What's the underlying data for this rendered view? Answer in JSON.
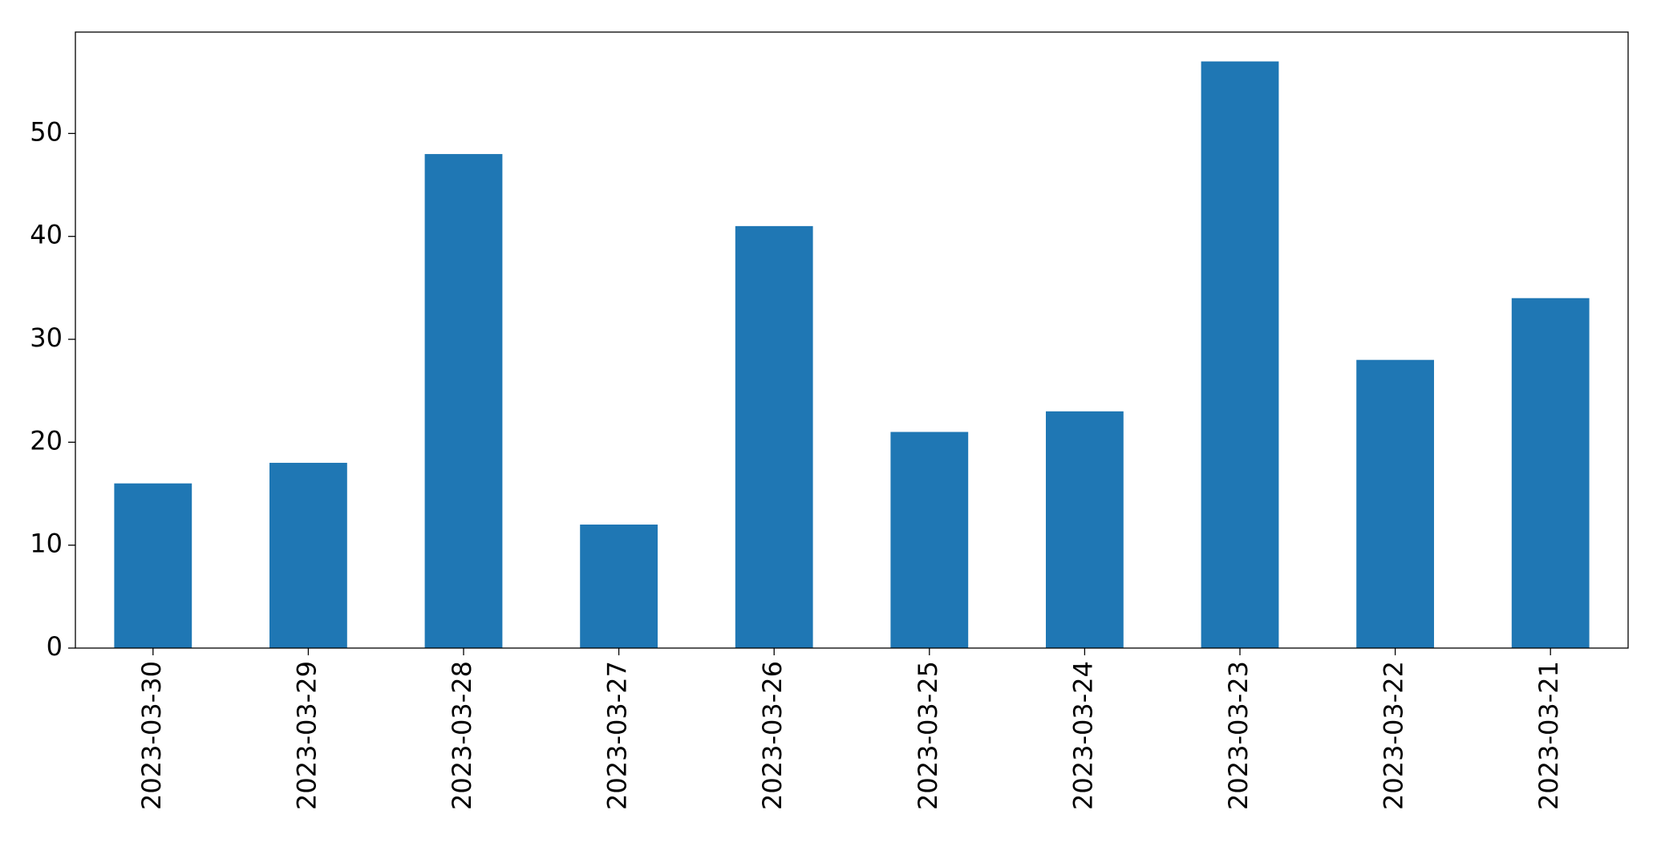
{
  "chart_data": {
    "type": "bar",
    "categories": [
      "2023-03-30",
      "2023-03-29",
      "2023-03-28",
      "2023-03-27",
      "2023-03-26",
      "2023-03-25",
      "2023-03-24",
      "2023-03-23",
      "2023-03-22",
      "2023-03-21"
    ],
    "values": [
      16,
      18,
      48,
      12,
      41,
      21,
      23,
      57,
      28,
      34
    ],
    "color": "#1f77b4",
    "ylim": [
      0,
      59.85
    ],
    "yticks": [
      0,
      10,
      20,
      30,
      40,
      50
    ],
    "grid": false
  }
}
